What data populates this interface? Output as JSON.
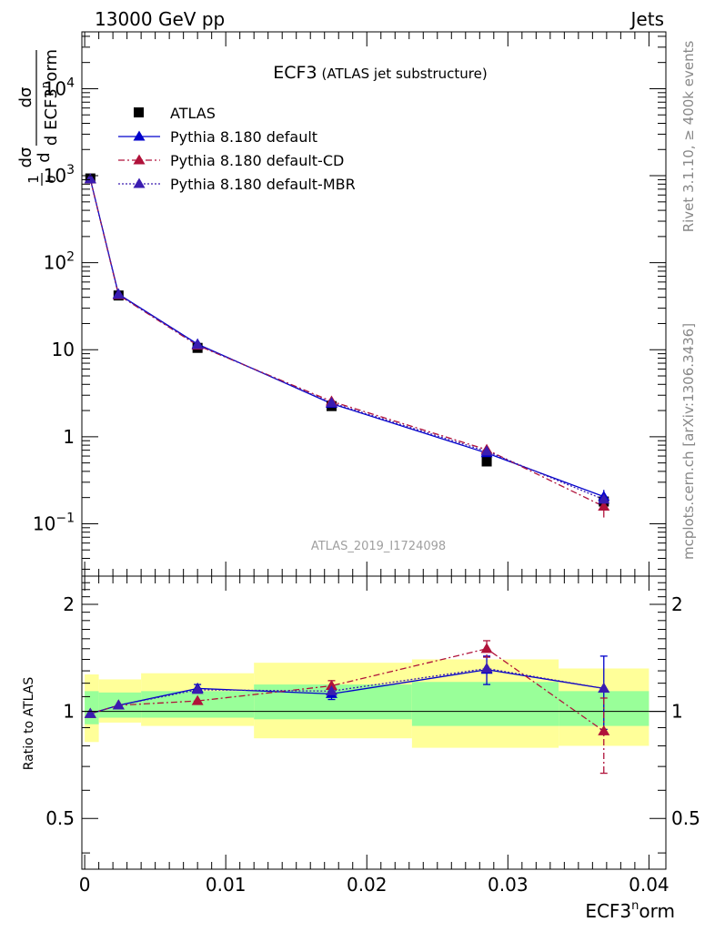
{
  "header": {
    "left": "13000 GeV pp",
    "right": "Jets"
  },
  "side_labels": {
    "rivet": "Rivet 3.1.10, ≥ 400k events",
    "mcplots": "mcplots.cern.ch [arXiv:1306.3436]"
  },
  "chart_data": [
    {
      "type": "scatter",
      "title": "ECF3",
      "subtitle": "(ATLAS jet substructure)",
      "watermark": "ATLAS_2019_I1724098",
      "xlabel": "ECF3^norm",
      "ylabel": "1/σ dσ/d ECF3^norm",
      "yscale": "log",
      "xlim": [
        -0.0002,
        0.0412
      ],
      "ylim": [
        0.025,
        45000
      ],
      "y_ticks": [
        {
          "value": 10000,
          "base": "10",
          "exp": "4"
        },
        {
          "value": 1000,
          "base": "10",
          "exp": "3"
        },
        {
          "value": 100,
          "base": "10",
          "exp": "2"
        },
        {
          "value": 10,
          "base": "10",
          "exp": ""
        },
        {
          "value": 1,
          "base": "1",
          "exp": ""
        },
        {
          "value": 0.1,
          "base": "10",
          "exp": "−1"
        }
      ],
      "legend_position": "top-left",
      "x": [
        0.0004,
        0.0024,
        0.008,
        0.0175,
        0.0285,
        0.0368
      ],
      "series": [
        {
          "name": "ATLAS",
          "style": "data",
          "color": "#000000",
          "values": [
            930,
            42,
            10.5,
            2.25,
            0.52,
            0.18
          ]
        },
        {
          "name": "Pythia 8.180 default",
          "style": "solid",
          "color": "#0000cc",
          "values": [
            915,
            43.5,
            11.6,
            2.4,
            0.65,
            0.205
          ],
          "err": [
            0,
            0,
            0,
            0,
            0.05,
            0.04
          ]
        },
        {
          "name": "Pythia 8.180 default-CD",
          "style": "dashdot",
          "color": "#b0123a",
          "values": [
            910,
            42.5,
            11.2,
            2.55,
            0.71,
            0.158
          ],
          "err": [
            0,
            0,
            0,
            0,
            0,
            0.04
          ]
        },
        {
          "name": "Pythia 8.180 default-MBR",
          "style": "dotted",
          "color": "#3a1cb0",
          "values": [
            912,
            43,
            11.4,
            2.45,
            0.68,
            0.19
          ],
          "err": [
            0,
            0,
            0,
            0,
            0,
            0
          ]
        }
      ]
    },
    {
      "type": "scatter",
      "ylabel": "Ratio to ATLAS",
      "xlabel": "ECF3^norm",
      "yscale": "log",
      "xlim": [
        -0.0002,
        0.0412
      ],
      "ylim": [
        0.36,
        2.4
      ],
      "y_ticks": [
        {
          "value": 2,
          "label": "2"
        },
        {
          "value": 1,
          "label": "1"
        },
        {
          "value": 0.5,
          "label": "0.5"
        }
      ],
      "x_ticks": [
        {
          "value": 0,
          "label": "0"
        },
        {
          "value": 0.01,
          "label": "0.01"
        },
        {
          "value": 0.02,
          "label": "0.02"
        },
        {
          "value": 0.03,
          "label": "0.03"
        },
        {
          "value": 0.04,
          "label": "0.04"
        }
      ],
      "uncertainty_bands": [
        {
          "x0": 0.0,
          "x1": 0.001,
          "yellow": [
            0.82,
            1.27
          ],
          "green": [
            0.92,
            1.14
          ]
        },
        {
          "x0": 0.001,
          "x1": 0.004,
          "yellow": [
            0.93,
            1.23
          ],
          "green": [
            0.96,
            1.13
          ]
        },
        {
          "x0": 0.004,
          "x1": 0.012,
          "yellow": [
            0.91,
            1.28
          ],
          "green": [
            0.96,
            1.14
          ]
        },
        {
          "x0": 0.012,
          "x1": 0.0232,
          "yellow": [
            0.84,
            1.37
          ],
          "green": [
            0.95,
            1.19
          ]
        },
        {
          "x0": 0.0232,
          "x1": 0.0336,
          "yellow": [
            0.79,
            1.4
          ],
          "green": [
            0.91,
            1.21
          ]
        },
        {
          "x0": 0.0336,
          "x1": 0.04,
          "yellow": [
            0.8,
            1.32
          ],
          "green": [
            0.91,
            1.14
          ]
        }
      ],
      "x": [
        0.0004,
        0.0024,
        0.008,
        0.0175,
        0.0285,
        0.0368
      ],
      "series": [
        {
          "name": "Pythia 8.180 default",
          "style": "solid",
          "color": "#0000cc",
          "values": [
            0.985,
            1.04,
            1.16,
            1.12,
            1.31,
            1.16
          ],
          "err_lo": [
            0,
            0,
            0.03,
            0.04,
            0.12,
            0.27
          ],
          "err_hi": [
            0,
            0,
            0.03,
            0.04,
            0.12,
            0.27
          ]
        },
        {
          "name": "Pythia 8.180 default-CD",
          "style": "dashdot",
          "color": "#b0123a",
          "values": [
            0.985,
            1.04,
            1.07,
            1.18,
            1.5,
            0.88
          ],
          "err_lo": [
            0,
            0,
            0,
            0.04,
            0.08,
            0.21
          ],
          "err_hi": [
            0,
            0,
            0,
            0.04,
            0.08,
            0.21
          ]
        },
        {
          "name": "Pythia 8.180 default-MBR",
          "style": "dotted",
          "color": "#3a1cb0",
          "values": [
            0.985,
            1.04,
            1.15,
            1.14,
            1.32,
            1.16
          ],
          "err_lo": [
            0,
            0,
            0,
            0,
            0,
            0
          ],
          "err_hi": [
            0,
            0,
            0,
            0,
            0,
            0
          ]
        }
      ]
    }
  ]
}
